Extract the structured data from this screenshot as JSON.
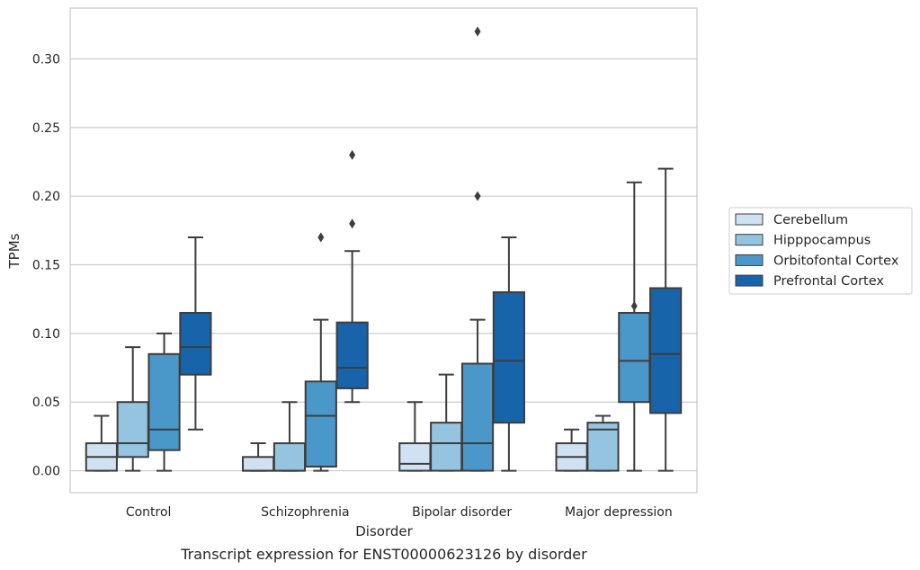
{
  "caption": "Transcript expression for ENST00000623126 by disorder",
  "chart_data": {
    "type": "box",
    "title": "",
    "xlabel": "Disorder",
    "ylabel": "TPMs",
    "ylim": [
      -0.016,
      0.337
    ],
    "yticks": [
      0.0,
      0.05,
      0.1,
      0.15,
      0.2,
      0.25,
      0.3
    ],
    "ytick_labels": [
      "0.00",
      "0.05",
      "0.10",
      "0.15",
      "0.20",
      "0.25",
      "0.30"
    ],
    "grid": "horizontal",
    "legend_position": "right",
    "categories": [
      "Control",
      "Schizophrenia",
      "Bipolar disorder",
      "Major depression"
    ],
    "series": [
      {
        "name": "Cerebellum",
        "color": "#d0e1f2",
        "boxes": [
          {
            "whislo": 0.0,
            "q1": 0.0,
            "med": 0.01,
            "q3": 0.02,
            "whishi": 0.04,
            "fliers": []
          },
          {
            "whislo": 0.0,
            "q1": 0.0,
            "med": 0.0,
            "q3": 0.01,
            "whishi": 0.02,
            "fliers": []
          },
          {
            "whislo": 0.0,
            "q1": 0.0,
            "med": 0.005,
            "q3": 0.02,
            "whishi": 0.05,
            "fliers": []
          },
          {
            "whislo": 0.0,
            "q1": 0.0,
            "med": 0.01,
            "q3": 0.02,
            "whishi": 0.03,
            "fliers": []
          }
        ]
      },
      {
        "name": "Hipppocampus",
        "color": "#94c4df",
        "boxes": [
          {
            "whislo": 0.0,
            "q1": 0.01,
            "med": 0.02,
            "q3": 0.05,
            "whishi": 0.09,
            "fliers": []
          },
          {
            "whislo": 0.0,
            "q1": 0.0,
            "med": 0.0,
            "q3": 0.02,
            "whishi": 0.05,
            "fliers": []
          },
          {
            "whislo": 0.0,
            "q1": 0.0,
            "med": 0.02,
            "q3": 0.035,
            "whishi": 0.07,
            "fliers": []
          },
          {
            "whislo": 0.0,
            "q1": 0.0,
            "med": 0.03,
            "q3": 0.035,
            "whishi": 0.04,
            "fliers": []
          }
        ]
      },
      {
        "name": "Orbitofontal Cortex",
        "color": "#4a98c9",
        "boxes": [
          {
            "whislo": 0.0,
            "q1": 0.015,
            "med": 0.03,
            "q3": 0.085,
            "whishi": 0.1,
            "fliers": []
          },
          {
            "whislo": 0.0,
            "q1": 0.003,
            "med": 0.04,
            "q3": 0.065,
            "whishi": 0.11,
            "fliers": [
              0.17
            ]
          },
          {
            "whislo": 0.0,
            "q1": 0.0,
            "med": 0.02,
            "q3": 0.078,
            "whishi": 0.11,
            "fliers": [
              0.2,
              0.32
            ]
          },
          {
            "whislo": 0.0,
            "q1": 0.05,
            "med": 0.08,
            "q3": 0.115,
            "whishi": 0.21,
            "fliers": [
              0.12
            ]
          }
        ]
      },
      {
        "name": "Prefrontal Cortex",
        "color": "#1764ab",
        "boxes": [
          {
            "whislo": 0.03,
            "q1": 0.07,
            "med": 0.09,
            "q3": 0.115,
            "whishi": 0.17,
            "fliers": []
          },
          {
            "whislo": 0.05,
            "q1": 0.06,
            "med": 0.075,
            "q3": 0.108,
            "whishi": 0.16,
            "fliers": [
              0.18,
              0.23
            ]
          },
          {
            "whislo": 0.0,
            "q1": 0.035,
            "med": 0.08,
            "q3": 0.13,
            "whishi": 0.17,
            "fliers": []
          },
          {
            "whislo": 0.0,
            "q1": 0.042,
            "med": 0.085,
            "q3": 0.133,
            "whishi": 0.22,
            "fliers": []
          }
        ]
      }
    ]
  }
}
